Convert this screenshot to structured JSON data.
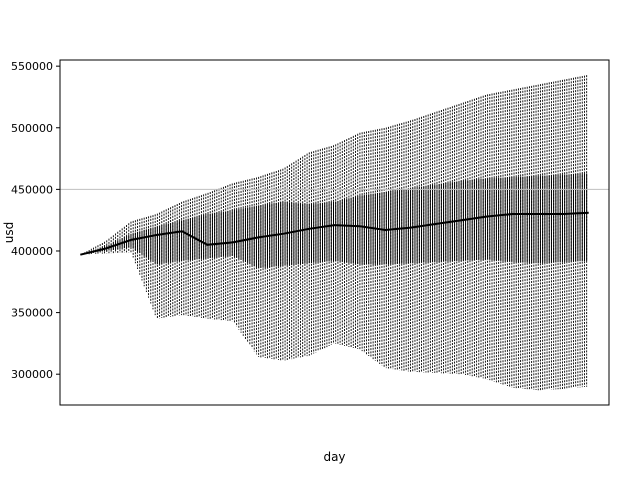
{
  "chart_data": {
    "type": "line",
    "title": "",
    "xlabel": "day",
    "ylabel": "usd",
    "ylim": [
      275000,
      555000
    ],
    "xlim": [
      -4,
      104
    ],
    "yticks": [
      300000,
      350000,
      400000,
      450000,
      500000,
      550000
    ],
    "ytick_labels": [
      "300000",
      "350000",
      "400000",
      "450000",
      "500000",
      "550000"
    ],
    "xticks": [],
    "grid": false,
    "legend": "none",
    "reference_line": {
      "y": 450000,
      "color": "#bfbfbf"
    },
    "colors": {
      "median": "#000000",
      "inner_band": "#000000",
      "outer_band": "#000000",
      "reference": "#bfbfbf"
    },
    "x": [
      0,
      5,
      10,
      15,
      20,
      25,
      30,
      35,
      40,
      45,
      50,
      55,
      60,
      65,
      70,
      75,
      80,
      85,
      90,
      95,
      100
    ],
    "series": [
      {
        "values": [
          397000,
          402000,
          409000,
          413000,
          416000,
          405000,
          407000,
          411000,
          414000,
          418000,
          421000,
          420000,
          417000,
          419000,
          422000,
          425000,
          428000,
          430000,
          430000,
          430000,
          431000
        ]
      },
      {
        "values": [
          397000,
          400000,
          403000,
          389000,
          392000,
          394000,
          396000,
          386000,
          388000,
          390000,
          392000,
          389000,
          389000,
          390000,
          391000,
          392000,
          393000,
          391000,
          390000,
          391000,
          392000
        ]
      },
      {
        "values": [
          397000,
          404000,
          414000,
          420000,
          425000,
          430000,
          433000,
          437000,
          440000,
          438000,
          440000,
          445000,
          448000,
          451000,
          454000,
          457000,
          459000,
          460000,
          461000,
          462000,
          463000
        ]
      },
      {
        "values": [
          397000,
          398000,
          399000,
          345000,
          348000,
          345000,
          343000,
          314000,
          311000,
          315000,
          325000,
          320000,
          305000,
          302000,
          301000,
          300000,
          296000,
          289000,
          287000,
          288000,
          290000
        ]
      },
      {
        "values": [
          397000,
          408000,
          424000,
          430000,
          440000,
          447000,
          455000,
          460000,
          467000,
          480000,
          486000,
          496000,
          500000,
          506000,
          513000,
          520000,
          527000,
          531000,
          535000,
          539000,
          543000
        ]
      }
    ]
  }
}
